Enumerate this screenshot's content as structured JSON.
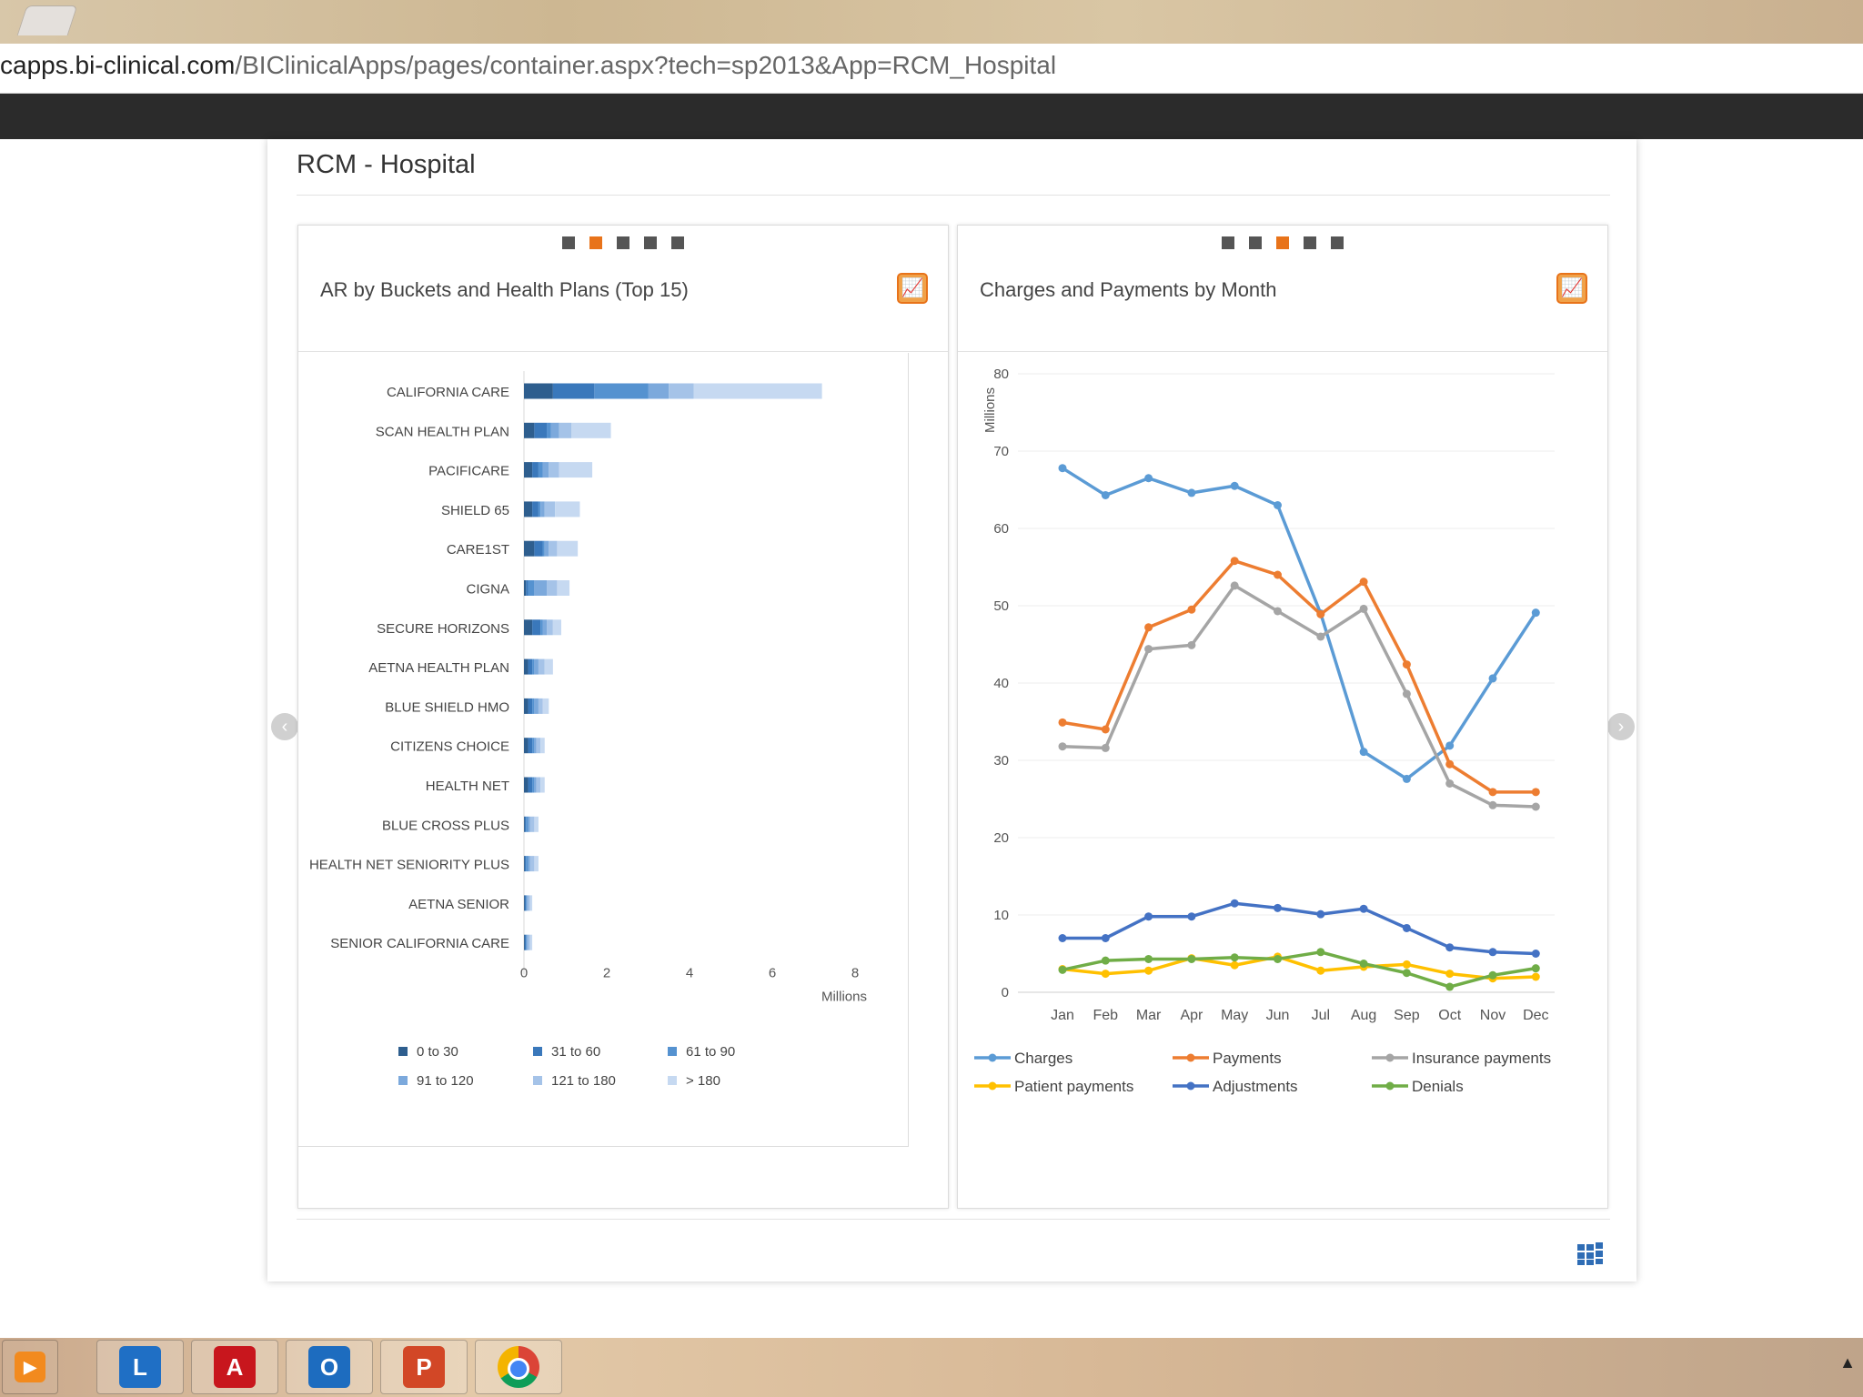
{
  "browser": {
    "url_host": "capps.bi-clinical.com",
    "url_path": "/BIClinicalApps/pages/container.aspx?tech=sp2013&App=RCM_Hospital"
  },
  "page": {
    "title": "RCM - Hospital"
  },
  "panels": {
    "left": {
      "title": "AR by Buckets and Health Plans (Top 15)",
      "carousel_dots": 5,
      "active_dot": 2
    },
    "right": {
      "title": "Charges and Payments by Month",
      "carousel_dots": 5,
      "active_dot": 3
    }
  },
  "icons": {
    "chart_button": "chart-icon",
    "prev": "chevron-left-icon",
    "next": "chevron-right-icon",
    "footer": "grid-icon"
  },
  "taskbar": {
    "apps": [
      "media-player",
      "lync",
      "adobe-acrobat",
      "outlook",
      "powerpoint",
      "chrome"
    ]
  },
  "chart_data": [
    {
      "type": "bar",
      "orientation": "horizontal",
      "stacked": true,
      "categories": [
        "CALIFORNIA CARE",
        "SCAN HEALTH PLAN",
        "PACIFICARE",
        "SHIELD 65",
        "CARE1ST",
        "CIGNA",
        "SECURE HORIZONS",
        "AETNA HEALTH PLAN",
        "BLUE SHIELD HMO",
        "CITIZENS CHOICE",
        "HEALTH NET",
        "BLUE CROSS PLUS",
        "HEALTH NET SENIORITY PLUS",
        "AETNA SENIOR",
        "SENIOR CALIFORNIA CARE"
      ],
      "series": [
        {
          "name": "0 to 30",
          "color": "#2e5e8e",
          "values": [
            0.7,
            0.25,
            0.2,
            0.2,
            0.25,
            0.05,
            0.2,
            0.1,
            0.1,
            0.1,
            0.1,
            0.02,
            0.02,
            0.02,
            0.02
          ]
        },
        {
          "name": "31 to 60",
          "color": "#3a78bb",
          "values": [
            1.0,
            0.3,
            0.15,
            0.15,
            0.2,
            0.05,
            0.2,
            0.1,
            0.1,
            0.1,
            0.1,
            0.03,
            0.03,
            0.03,
            0.03
          ]
        },
        {
          "name": "61 to 90",
          "color": "#5592d0",
          "values": [
            1.3,
            0.1,
            0.1,
            0.05,
            0.05,
            0.15,
            0.05,
            0.05,
            0.05,
            0.05,
            0.05,
            0.05,
            0.05,
            0.02,
            0.02
          ]
        },
        {
          "name": "91 to 120",
          "color": "#7ca9dc",
          "values": [
            0.5,
            0.2,
            0.15,
            0.1,
            0.1,
            0.3,
            0.1,
            0.1,
            0.1,
            0.05,
            0.05,
            0.05,
            0.05,
            0.03,
            0.03
          ]
        },
        {
          "name": "121 to 180",
          "color": "#a5c3e8",
          "values": [
            0.6,
            0.3,
            0.25,
            0.25,
            0.2,
            0.25,
            0.15,
            0.15,
            0.1,
            0.1,
            0.1,
            0.1,
            0.1,
            0.05,
            0.05
          ]
        },
        {
          "name": "> 180",
          "color": "#c6d9f1",
          "values": [
            3.1,
            0.95,
            0.8,
            0.6,
            0.5,
            0.3,
            0.2,
            0.2,
            0.15,
            0.1,
            0.1,
            0.1,
            0.1,
            0.05,
            0.05
          ]
        }
      ],
      "xticks": [
        "0",
        "2",
        "4",
        "6",
        "8"
      ],
      "xlim": [
        0,
        8
      ],
      "xlabel": "Millions",
      "legend_position": "bottom"
    },
    {
      "type": "line",
      "x": [
        "Jan",
        "Feb",
        "Mar",
        "Apr",
        "May",
        "Jun",
        "Jul",
        "Aug",
        "Sep",
        "Oct",
        "Nov",
        "Dec"
      ],
      "series": [
        {
          "name": "Charges",
          "color": "#5b9bd5",
          "values": [
            67.8,
            64.3,
            66.5,
            64.6,
            65.5,
            63.0,
            49.0,
            31.1,
            27.6,
            31.9,
            40.6,
            49.1
          ]
        },
        {
          "name": "Payments",
          "color": "#ed7d31",
          "values": [
            34.9,
            34.0,
            47.2,
            49.5,
            55.8,
            54.0,
            48.9,
            53.1,
            42.4,
            29.5,
            25.9,
            25.9
          ]
        },
        {
          "name": "Insurance payments",
          "color": "#a5a5a5",
          "values": [
            31.8,
            31.6,
            44.4,
            44.9,
            52.6,
            49.3,
            46.0,
            49.6,
            38.6,
            27.0,
            24.2,
            24.0
          ]
        },
        {
          "name": "Patient payments",
          "color": "#ffc000",
          "values": [
            3.0,
            2.4,
            2.8,
            4.4,
            3.5,
            4.6,
            2.8,
            3.3,
            3.6,
            2.4,
            1.8,
            2.0
          ]
        },
        {
          "name": "Adjustments",
          "color": "#4472c4",
          "values": [
            7.0,
            7.0,
            9.8,
            9.8,
            11.5,
            10.9,
            10.1,
            10.8,
            8.3,
            5.8,
            5.2,
            5.0
          ]
        },
        {
          "name": "Denials",
          "color": "#70ad47",
          "values": [
            2.9,
            4.1,
            4.3,
            4.3,
            4.5,
            4.3,
            5.2,
            3.7,
            2.5,
            0.7,
            2.2,
            3.1
          ]
        }
      ],
      "yticks": [
        "0",
        "10",
        "20",
        "30",
        "40",
        "50",
        "60",
        "70",
        "80"
      ],
      "ylim": [
        0,
        80
      ],
      "ylabel": "Millions",
      "grid": true,
      "legend_position": "bottom"
    }
  ]
}
